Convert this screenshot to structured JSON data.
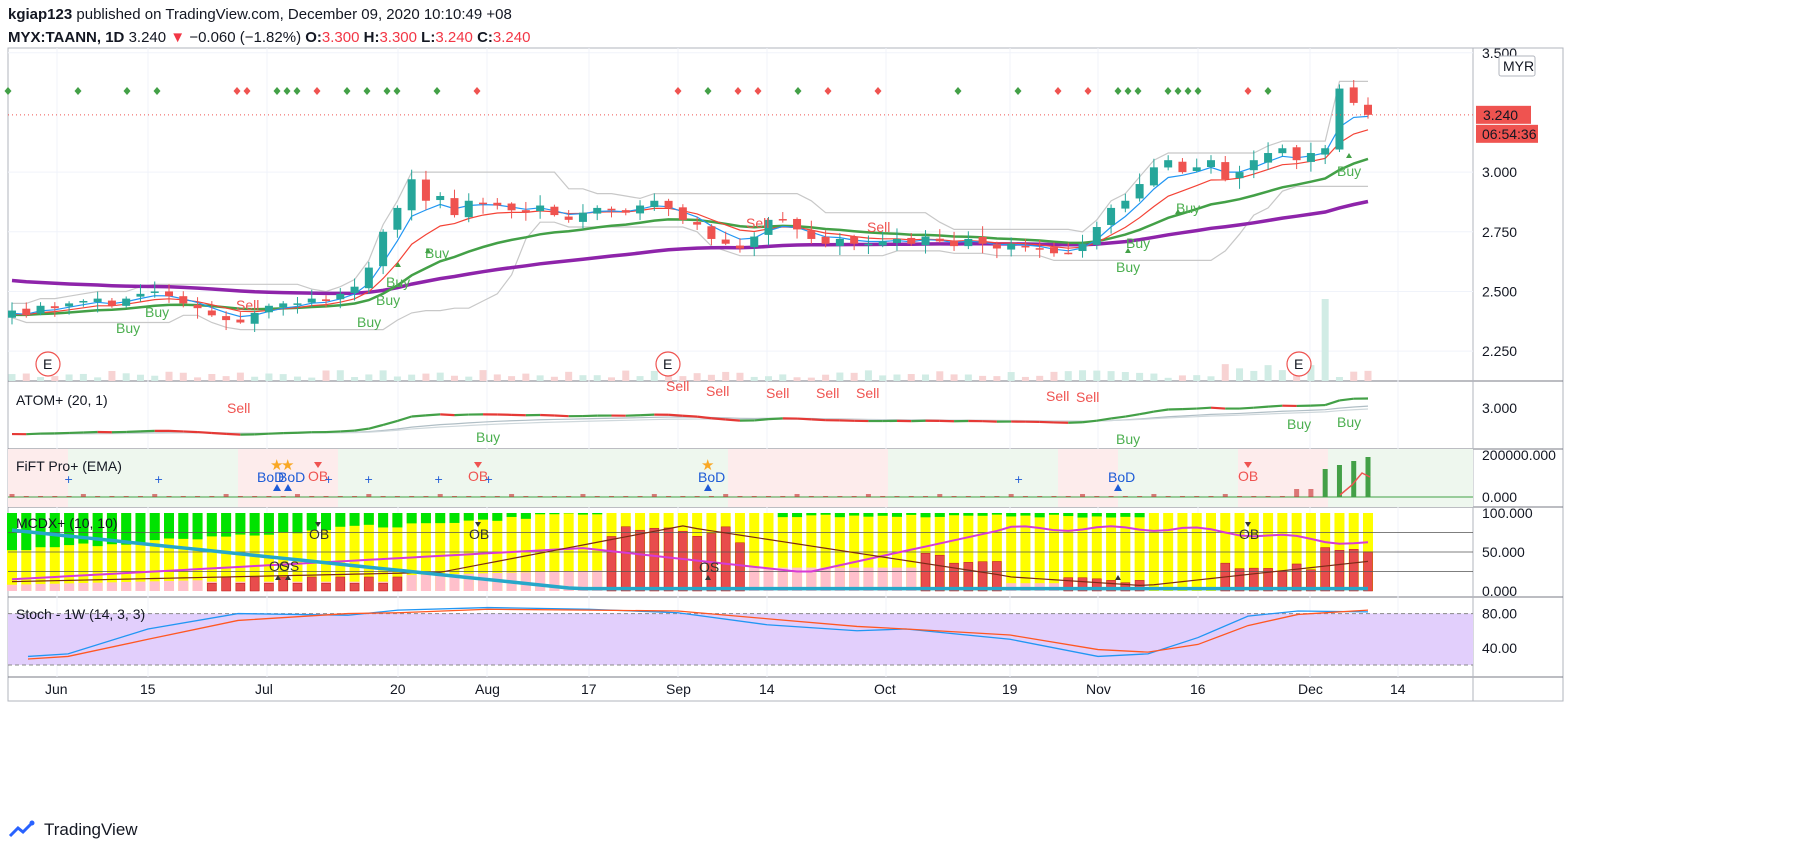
{
  "header": {
    "user": "kgiap123",
    "published_text": "published on TradingView.com, December 09, 2020 10:10:49 +08",
    "symbol": "MYX:TAANN, 1D",
    "last": "3.240",
    "change_arrow": "▼",
    "change": "−0.060 (−1.82%)",
    "o_label": "O:",
    "o": "3.300",
    "h_label": "H:",
    "h": "3.300",
    "l_label": "L:",
    "l": "3.240",
    "c_label": "C:",
    "c": "3.240"
  },
  "currency_badge": "MYR",
  "price_badge": "3.240",
  "countdown_badge": "06:54:36",
  "footer": {
    "brand": "TradingView"
  },
  "colors": {
    "up": "#26a69a",
    "down": "#ef5350",
    "ema_fast": "#2196f3",
    "ema_mid": "#f44336",
    "ema_slow": "#43a047",
    "ema_long": "#8e24aa",
    "buy": "#4caf50",
    "sell": "#ef5350"
  },
  "chart_data": {
    "type": "line",
    "x_tick_labels": [
      "Jun",
      "15",
      "Jul",
      "20",
      "Aug",
      "17",
      "Sep",
      "14",
      "Oct",
      "19",
      "Nov",
      "16",
      "Dec",
      "14"
    ],
    "panes": [
      {
        "name": "price",
        "y_ticks": [
          "3.500",
          "3.000",
          "2.750",
          "2.500",
          "2.250"
        ],
        "ylim": [
          2.15,
          3.52
        ],
        "series": [
          {
            "name": "close",
            "values": [
              2.42,
              2.4,
              2.44,
              2.43,
              2.45,
              2.46,
              2.47,
              2.44,
              2.47,
              2.49,
              2.5,
              2.48,
              2.45,
              2.43,
              2.4,
              2.38,
              2.37,
              2.41,
              2.44,
              2.45,
              2.45,
              2.47,
              2.46,
              2.49,
              2.52,
              2.6,
              2.75,
              2.85,
              2.97,
              2.88,
              2.9,
              2.82,
              2.88,
              2.87,
              2.86,
              2.84,
              2.83,
              2.86,
              2.82,
              2.8,
              2.83,
              2.85,
              2.84,
              2.83,
              2.86,
              2.88,
              2.85,
              2.8,
              2.78,
              2.72,
              2.7,
              2.68,
              2.73,
              2.8,
              2.8,
              2.76,
              2.72,
              2.7,
              2.72,
              2.7,
              2.7,
              2.71,
              2.72,
              2.7,
              2.73,
              2.71,
              2.69,
              2.72,
              2.7,
              2.68,
              2.7,
              2.69,
              2.68,
              2.66,
              2.66,
              2.7,
              2.77,
              2.85,
              2.88,
              2.95,
              3.02,
              3.05,
              3.0,
              3.02,
              3.05,
              2.97,
              3.0,
              3.05,
              3.08,
              3.1,
              3.05,
              3.08,
              3.1,
              3.35,
              3.29,
              3.24
            ]
          },
          {
            "name": "ema_fast",
            "values": []
          },
          {
            "name": "ema_slow_green",
            "values": []
          },
          {
            "name": "ema_long_purple",
            "values": []
          }
        ],
        "signals": [
          "Buy",
          "Buy",
          "Sell",
          "Buy",
          "Buy",
          "Buy",
          "Buy",
          "Sell",
          "Sell",
          "Buy",
          "Buy",
          "Buy",
          "Buy"
        ]
      },
      {
        "name": "ATOM+ (20, 1)",
        "y_ticks": [
          "3.000"
        ],
        "signals": [
          "Sell",
          "Buy",
          "Sell",
          "Sell",
          "Sell",
          "Sell",
          "Sell",
          "Sell",
          "Sell",
          "Buy",
          "Buy",
          "Buy"
        ]
      },
      {
        "name": "FiFT Pro+ (EMA)",
        "y_ticks": [
          "200000.000",
          "0.000"
        ],
        "labels": [
          "BoD",
          "BoD",
          "OB",
          "OB",
          "BoD",
          "BoD",
          "OB"
        ]
      },
      {
        "name": "MCDX+ (10, 10)",
        "y_ticks": [
          "100.000",
          "50.000",
          "0.000"
        ],
        "labels": [
          "OB",
          "OB",
          "OS",
          "OS",
          "OS",
          "OB"
        ]
      },
      {
        "name": "Stoch - 1W (14, 3, 3)",
        "y_ticks": [
          "80.00",
          "40.00"
        ]
      }
    ]
  }
}
